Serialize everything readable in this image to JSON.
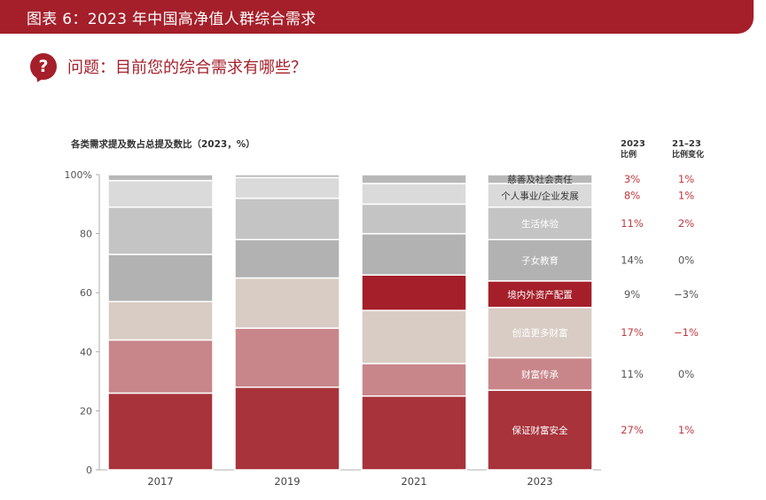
{
  "header": {
    "title": "图表 6：2023 年中国高净值人群综合需求"
  },
  "question": {
    "badge": "?",
    "text": "问题：目前您的综合需求有哪些？"
  },
  "chart_data": {
    "type": "bar",
    "stacked": true,
    "title": "各类需求提及数占总提及数比（2023，%）",
    "categories": [
      "2017",
      "2019",
      "2021",
      "2023"
    ],
    "ylim": [
      0,
      100
    ],
    "yticks": [
      0,
      20,
      40,
      60,
      80,
      100
    ],
    "ytick_labels": [
      "0",
      "20",
      "40",
      "60",
      "80",
      "100%"
    ],
    "series": [
      {
        "name": "保证财富安全",
        "values": [
          26,
          28,
          25,
          27
        ],
        "color": "#a8333b"
      },
      {
        "name": "财富传承",
        "values": [
          18,
          20,
          11,
          11
        ],
        "color": "#c8868a"
      },
      {
        "name": "创造更多财富",
        "values": [
          13,
          17,
          18,
          17
        ],
        "color": "#d8ccc4"
      },
      {
        "name": "境内外资产配置",
        "values": [
          0,
          0,
          12,
          9
        ],
        "color": "#a51f2a"
      },
      {
        "name": "子女教育",
        "values": [
          16,
          13,
          14,
          14
        ],
        "color": "#b2b2b2"
      },
      {
        "name": "生活体验",
        "values": [
          16,
          14,
          10,
          11
        ],
        "color": "#c4c4c4"
      },
      {
        "name": "个人事业/企业发展",
        "values": [
          9,
          7,
          7,
          8
        ],
        "color": "#dadada"
      },
      {
        "name": "慈善及社会责任",
        "values": [
          2,
          1,
          3,
          3
        ],
        "color": "#b8b8b8"
      }
    ],
    "col_headers": {
      "ratio": "2023\n比例",
      "change": "21–23\n比例变化"
    },
    "ratio_labels": [
      "27%",
      "11%",
      "17%",
      "9%",
      "14%",
      "11%",
      "8%",
      "3%"
    ],
    "change_labels": [
      "1%",
      "0%",
      "−1%",
      "−3%",
      "0%",
      "2%",
      "1%",
      "1%"
    ],
    "highlight_color": "#c0393f",
    "normal_color": "#555555",
    "highlight": [
      true,
      false,
      true,
      false,
      false,
      true,
      true,
      true
    ]
  }
}
